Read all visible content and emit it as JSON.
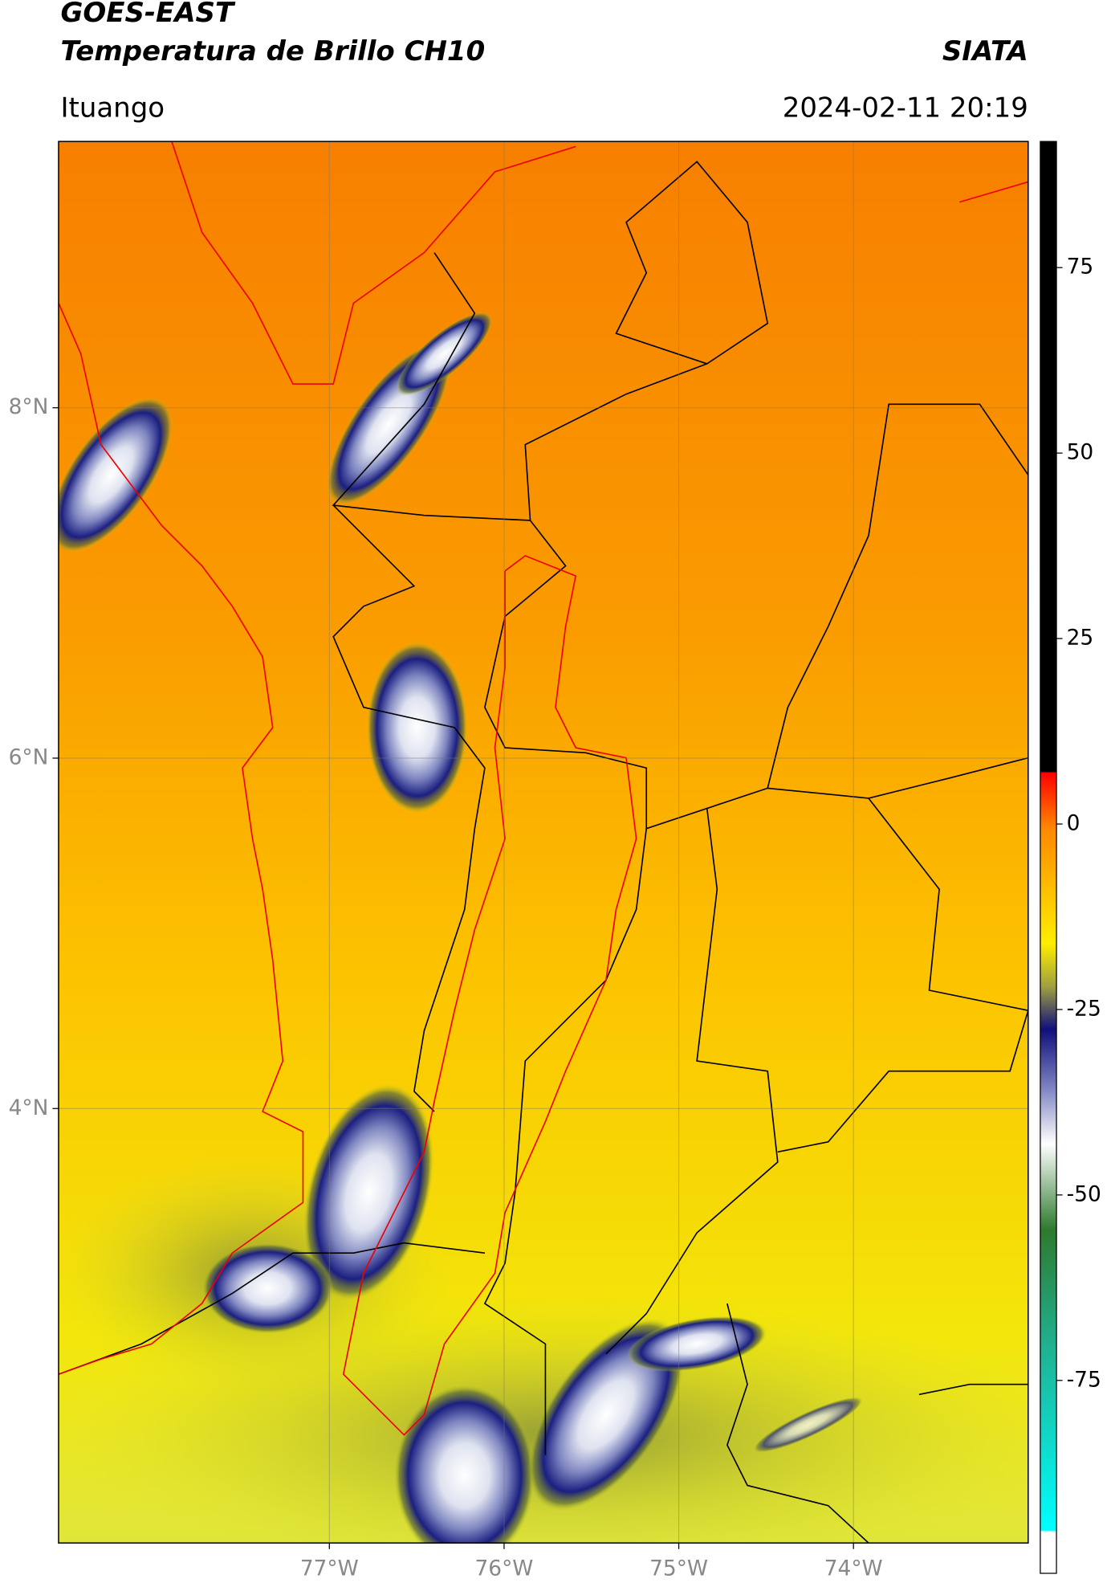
{
  "header": {
    "title": "GOES-EAST",
    "subtitle": "Temperatura de Brillo CH10",
    "source": "SIATA",
    "location": "Ituango",
    "datetime": "2024-02-11 20:19"
  },
  "map": {
    "xlim": [
      -78.55,
      -73.0
    ],
    "ylim": [
      1.52,
      9.52
    ],
    "xticks": [
      {
        "value": -77,
        "label": "77°W"
      },
      {
        "value": -76,
        "label": "76°W"
      },
      {
        "value": -75,
        "label": "75°W"
      },
      {
        "value": -74,
        "label": "74°W"
      }
    ],
    "yticks": [
      {
        "value": 8,
        "label": "8°N"
      },
      {
        "value": 6,
        "label": "6°N"
      },
      {
        "value": 4,
        "label": "4°N"
      }
    ],
    "grid": true
  },
  "colorbar": {
    "lim": [
      -101,
      92
    ],
    "ticks": [
      75,
      50,
      25,
      0,
      -25,
      -50,
      -75
    ]
  }
}
